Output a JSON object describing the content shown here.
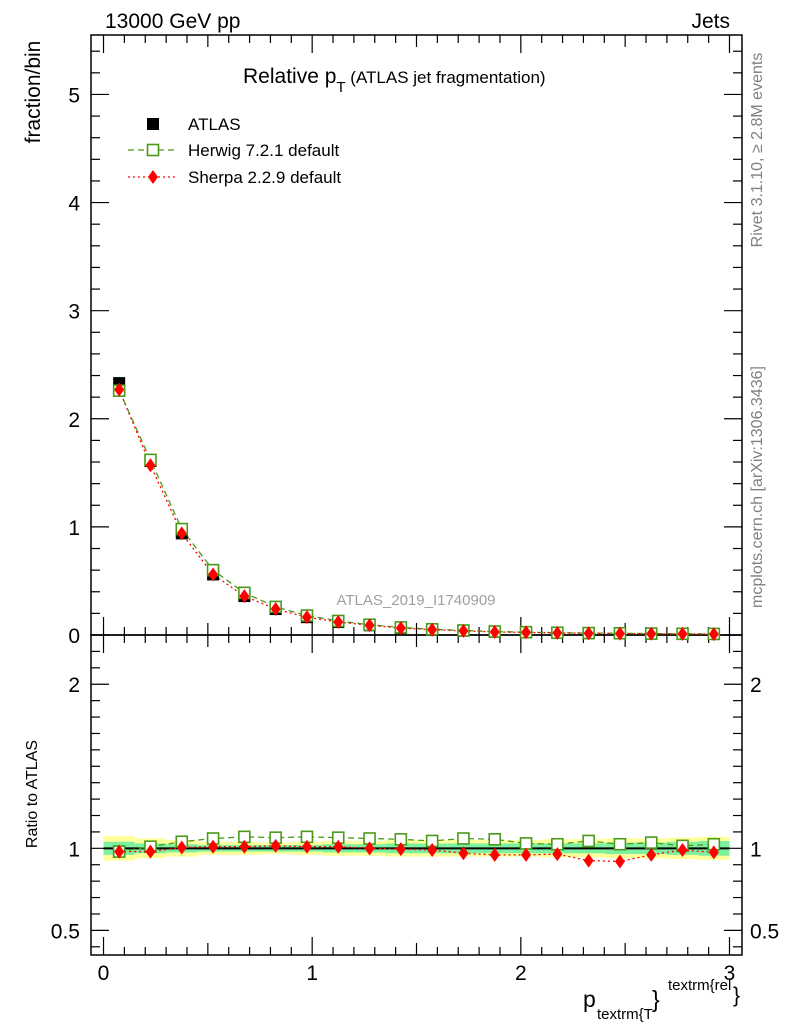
{
  "header": {
    "energy": "13000 GeV pp",
    "process": "Jets"
  },
  "title": {
    "main": "Relative p",
    "sub": "T",
    "rest": " (ATLAS jet fragmentation)"
  },
  "side_text": {
    "rivet": "Rivet 3.1.10, ≥ 2.8M events",
    "mcplots": "mcplots.cern.ch [arXiv:1306.3436]"
  },
  "analysis_id": "ATLAS_2019_I1740909",
  "legend": {
    "atlas": "ATLAS",
    "herwig": "Herwig 7.2.1 default",
    "sherpa": "Sherpa 2.2.9 default"
  },
  "axes": {
    "ylabel_main": "fraction/bin",
    "ylabel_ratio": "Ratio to ATLAS",
    "xlabel_p": "p",
    "xlabel_sub": "textrm{T",
    "xlabel_brace": "}",
    "xlabel_sup": "textrm{rel",
    "xlabel_brace2": "}"
  },
  "colors": {
    "atlas": "#000000",
    "herwig": "#4a9a1a",
    "sherpa": "#ff0000",
    "band_inner": "#7df0a0",
    "band_outer": "#ffff99"
  },
  "chart_data": [
    {
      "type": "scatter",
      "name": "main",
      "xlim": [
        -0.06,
        3.06
      ],
      "ylim": [
        0,
        5.55
      ],
      "yticks": [
        0,
        1,
        2,
        3,
        4,
        5
      ],
      "ytick_labels": [
        "0",
        "1",
        "2",
        "3",
        "4",
        "5"
      ],
      "x": [
        0.075,
        0.225,
        0.375,
        0.525,
        0.675,
        0.825,
        0.975,
        1.125,
        1.275,
        1.425,
        1.575,
        1.725,
        1.875,
        2.025,
        2.175,
        2.325,
        2.475,
        2.625,
        2.775,
        2.925
      ],
      "series": [
        {
          "name": "ATLAS",
          "marker": "square",
          "values": [
            2.33,
            1.61,
            0.94,
            0.56,
            0.36,
            0.24,
            0.165,
            0.12,
            0.09,
            0.065,
            0.05,
            0.04,
            0.03,
            0.025,
            0.02,
            0.017,
            0.015,
            0.012,
            0.01,
            0.009
          ]
        },
        {
          "name": "Herwig 7.2.1 default",
          "marker": "open-square",
          "values": [
            2.26,
            1.62,
            0.98,
            0.6,
            0.39,
            0.26,
            0.18,
            0.13,
            0.095,
            0.07,
            0.053,
            0.042,
            0.032,
            0.026,
            0.021,
            0.018,
            0.016,
            0.013,
            0.011,
            0.01
          ]
        },
        {
          "name": "Sherpa 2.2.9 default",
          "marker": "diamond",
          "values": [
            2.27,
            1.57,
            0.94,
            0.56,
            0.36,
            0.24,
            0.165,
            0.12,
            0.09,
            0.064,
            0.049,
            0.038,
            0.028,
            0.024,
            0.019,
            0.015,
            0.013,
            0.011,
            0.01,
            0.008
          ]
        }
      ]
    },
    {
      "type": "scatter",
      "name": "ratio",
      "xlim": [
        -0.06,
        3.06
      ],
      "ylim": [
        0.35,
        2.3
      ],
      "yticks": [
        0.5,
        1,
        2
      ],
      "ytick_labels": [
        "0.5",
        "1",
        "2"
      ],
      "xticks": [
        0,
        1,
        2,
        3
      ],
      "xtick_labels": [
        "0",
        "1",
        "2",
        "3"
      ],
      "x": [
        0.075,
        0.225,
        0.375,
        0.525,
        0.675,
        0.825,
        0.975,
        1.125,
        1.275,
        1.425,
        1.575,
        1.725,
        1.875,
        2.025,
        2.175,
        2.325,
        2.475,
        2.625,
        2.775,
        2.925
      ],
      "band_inner": [
        0.04,
        0.03,
        0.025,
        0.02,
        0.02,
        0.02,
        0.02,
        0.025,
        0.025,
        0.03,
        0.03,
        0.03,
        0.03,
        0.03,
        0.03,
        0.03,
        0.035,
        0.035,
        0.04,
        0.045
      ],
      "band_outer": [
        0.075,
        0.06,
        0.05,
        0.04,
        0.04,
        0.035,
        0.04,
        0.045,
        0.045,
        0.05,
        0.05,
        0.05,
        0.05,
        0.05,
        0.055,
        0.055,
        0.06,
        0.06,
        0.065,
        0.07
      ],
      "series": [
        {
          "name": "Herwig 7.2.1 default",
          "marker": "open-square",
          "values": [
            0.98,
            1.01,
            1.04,
            1.06,
            1.07,
            1.065,
            1.07,
            1.065,
            1.06,
            1.055,
            1.045,
            1.06,
            1.055,
            1.03,
            1.025,
            1.045,
            1.025,
            1.035,
            1.015,
            1.025
          ]
        },
        {
          "name": "Sherpa 2.2.9 default",
          "marker": "diamond",
          "values": [
            0.98,
            0.98,
            1.005,
            1.01,
            1.01,
            1.015,
            1.01,
            1.01,
            1.0,
            0.995,
            0.99,
            0.97,
            0.96,
            0.96,
            0.965,
            0.925,
            0.92,
            0.96,
            0.99,
            0.975
          ]
        }
      ]
    }
  ]
}
